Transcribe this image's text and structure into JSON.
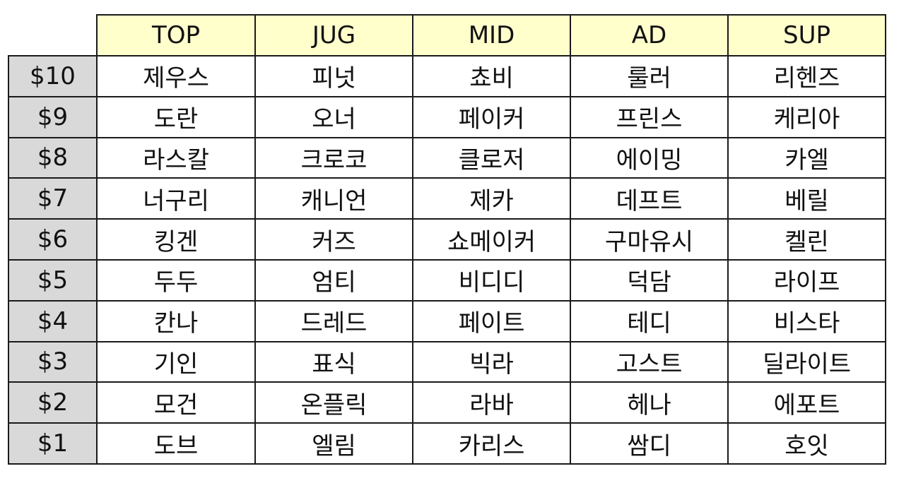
{
  "colors": {
    "header_bg": "#ffffcc",
    "row_header_bg": "#d9d9d9",
    "border": "#1a1a1a"
  },
  "table": {
    "columns": [
      "TOP",
      "JUG",
      "MID",
      "AD",
      "SUP"
    ],
    "rows": [
      {
        "price": "$10",
        "cells": [
          "제우스",
          "피넛",
          "쵸비",
          "룰러",
          "리헨즈"
        ]
      },
      {
        "price": "$9",
        "cells": [
          "도란",
          "오너",
          "페이커",
          "프린스",
          "케리아"
        ]
      },
      {
        "price": "$8",
        "cells": [
          "라스칼",
          "크로코",
          "클로저",
          "에이밍",
          "카엘"
        ]
      },
      {
        "price": "$7",
        "cells": [
          "너구리",
          "캐니언",
          "제카",
          "데프트",
          "베릴"
        ]
      },
      {
        "price": "$6",
        "cells": [
          "킹겐",
          "커즈",
          "쇼메이커",
          "구마유시",
          "켈린"
        ]
      },
      {
        "price": "$5",
        "cells": [
          "두두",
          "엄티",
          "비디디",
          "덕담",
          "라이프"
        ]
      },
      {
        "price": "$4",
        "cells": [
          "칸나",
          "드레드",
          "페이트",
          "테디",
          "비스타"
        ]
      },
      {
        "price": "$3",
        "cells": [
          "기인",
          "표식",
          "빅라",
          "고스트",
          "딜라이트"
        ]
      },
      {
        "price": "$2",
        "cells": [
          "모건",
          "온플릭",
          "라바",
          "헤나",
          "에포트"
        ]
      },
      {
        "price": "$1",
        "cells": [
          "도브",
          "엘림",
          "카리스",
          "쌈디",
          "호잇"
        ]
      }
    ]
  }
}
